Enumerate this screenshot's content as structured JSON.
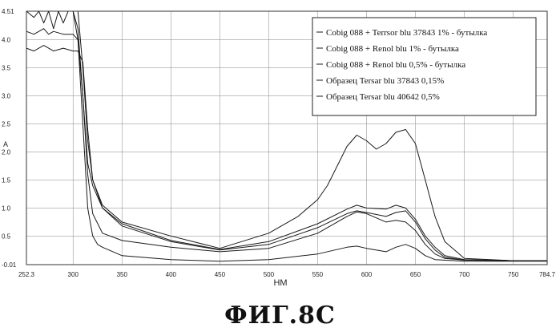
{
  "figure": {
    "caption": "ФИГ.8С"
  },
  "chart_data": {
    "type": "line",
    "xlabel": "НМ",
    "ylabel": "A",
    "xlim": [
      252.3,
      784.7
    ],
    "ylim": [
      -0.01,
      4.51
    ],
    "xticks": [
      "252.3",
      "300",
      "350",
      "400",
      "450",
      "500",
      "550",
      "600",
      "650",
      "700",
      "750",
      "784.7"
    ],
    "yticks": [
      "4.51",
      "4.0",
      "3.5",
      "3.0",
      "2.5",
      "2.0",
      "1.5",
      "1.0",
      "0.5",
      "-0.01"
    ],
    "grid": true,
    "legend_position": "top-right",
    "series": [
      {
        "name": "Cobig 088 + Terrsor blu 37843 1% - бутылка",
        "x": [
          252.3,
          260,
          265,
          270,
          275,
          280,
          285,
          290,
          295,
          300,
          305,
          310,
          315,
          320,
          330,
          350,
          400,
          450,
          500,
          530,
          550,
          560,
          570,
          580,
          590,
          600,
          610,
          620,
          630,
          640,
          650,
          660,
          670,
          680,
          700,
          750,
          784.7
        ],
        "y": [
          4.51,
          4.4,
          4.51,
          4.3,
          4.51,
          4.2,
          4.51,
          4.3,
          4.51,
          4.51,
          4.51,
          3.5,
          2.2,
          1.5,
          1.05,
          0.75,
          0.5,
          0.28,
          0.55,
          0.85,
          1.15,
          1.4,
          1.75,
          2.1,
          2.3,
          2.2,
          2.05,
          2.15,
          2.35,
          2.4,
          2.15,
          1.5,
          0.85,
          0.4,
          0.1,
          0.06,
          0.06
        ]
      },
      {
        "name": "Cobig 088 + Renol blu 1% - бутылка",
        "x": [
          252.3,
          260,
          270,
          275,
          280,
          290,
          300,
          305,
          310,
          315,
          320,
          330,
          350,
          400,
          450,
          500,
          550,
          580,
          590,
          600,
          620,
          630,
          640,
          650,
          660,
          670,
          680,
          700,
          750,
          784.7
        ],
        "y": [
          4.15,
          4.1,
          4.2,
          4.1,
          4.15,
          4.1,
          4.1,
          4.0,
          3.0,
          1.8,
          1.4,
          1.0,
          0.72,
          0.42,
          0.26,
          0.4,
          0.72,
          0.98,
          1.05,
          1.0,
          0.98,
          1.05,
          1.0,
          0.8,
          0.5,
          0.3,
          0.15,
          0.08,
          0.06,
          0.06
        ]
      },
      {
        "name": "Cobig 088 + Renol blu 0,5% - бутылка",
        "x": [
          252.3,
          260,
          270,
          280,
          290,
          300,
          305,
          310,
          315,
          320,
          330,
          350,
          400,
          450,
          500,
          550,
          580,
          590,
          600,
          620,
          630,
          640,
          650,
          660,
          670,
          680,
          700,
          750,
          784.7
        ],
        "y": [
          3.85,
          3.8,
          3.9,
          3.8,
          3.85,
          3.8,
          3.8,
          3.6,
          2.4,
          1.5,
          1.0,
          0.68,
          0.4,
          0.25,
          0.35,
          0.65,
          0.9,
          0.95,
          0.92,
          0.85,
          0.92,
          0.95,
          0.75,
          0.45,
          0.25,
          0.12,
          0.07,
          0.06,
          0.06
        ]
      },
      {
        "name": "Образец Tersar blu 37843 0,15%",
        "x": [
          252.3,
          300,
          305,
          310,
          315,
          320,
          330,
          350,
          400,
          450,
          500,
          550,
          580,
          590,
          600,
          620,
          630,
          640,
          650,
          660,
          670,
          680,
          700,
          750,
          784.7
        ],
        "y": [
          4.51,
          4.51,
          4.2,
          3.0,
          1.6,
          0.9,
          0.55,
          0.42,
          0.3,
          0.22,
          0.28,
          0.55,
          0.85,
          0.93,
          0.9,
          0.75,
          0.78,
          0.75,
          0.6,
          0.35,
          0.18,
          0.1,
          0.07,
          0.06,
          0.06
        ]
      },
      {
        "name": "Образец Tersar blu 40642 0,5%",
        "x": [
          252.3,
          300,
          305,
          310,
          315,
          320,
          325,
          330,
          350,
          400,
          450,
          500,
          550,
          580,
          590,
          600,
          620,
          630,
          640,
          650,
          660,
          670,
          700,
          750,
          784.7
        ],
        "y": [
          4.51,
          4.51,
          4.0,
          2.5,
          1.0,
          0.5,
          0.35,
          0.3,
          0.15,
          0.08,
          0.05,
          0.08,
          0.18,
          0.3,
          0.32,
          0.28,
          0.22,
          0.3,
          0.35,
          0.28,
          0.15,
          0.08,
          0.05,
          0.05,
          0.05
        ]
      }
    ]
  }
}
